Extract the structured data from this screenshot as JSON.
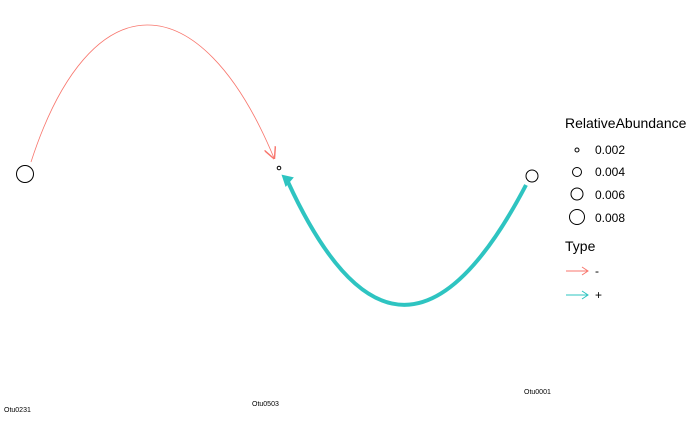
{
  "nodes": [
    {
      "id": "Otu0231",
      "label": "Otu0231",
      "abundance": 0.008
    },
    {
      "id": "Otu0503",
      "label": "Otu0503",
      "abundance": 0.002
    },
    {
      "id": "Otu0001",
      "label": "Otu0001",
      "abundance": 0.006
    }
  ],
  "edges": [
    {
      "from": "Otu0231",
      "to": "Otu0503",
      "type": "-",
      "color": "#F8766D"
    },
    {
      "from": "Otu0001",
      "to": "Otu0503",
      "type": "+",
      "color": "#2EC4C1"
    }
  ],
  "legend": {
    "size_title": "RelativeAbundance",
    "size_items": [
      {
        "label": "0.002",
        "value": 0.002
      },
      {
        "label": "0.004",
        "value": 0.004
      },
      {
        "label": "0.006",
        "value": 0.006
      },
      {
        "label": "0.008",
        "value": 0.008
      }
    ],
    "type_title": "Type",
    "type_items": [
      {
        "label": "-",
        "color": "#F8766D"
      },
      {
        "label": "+",
        "color": "#2EC4C1"
      }
    ]
  }
}
